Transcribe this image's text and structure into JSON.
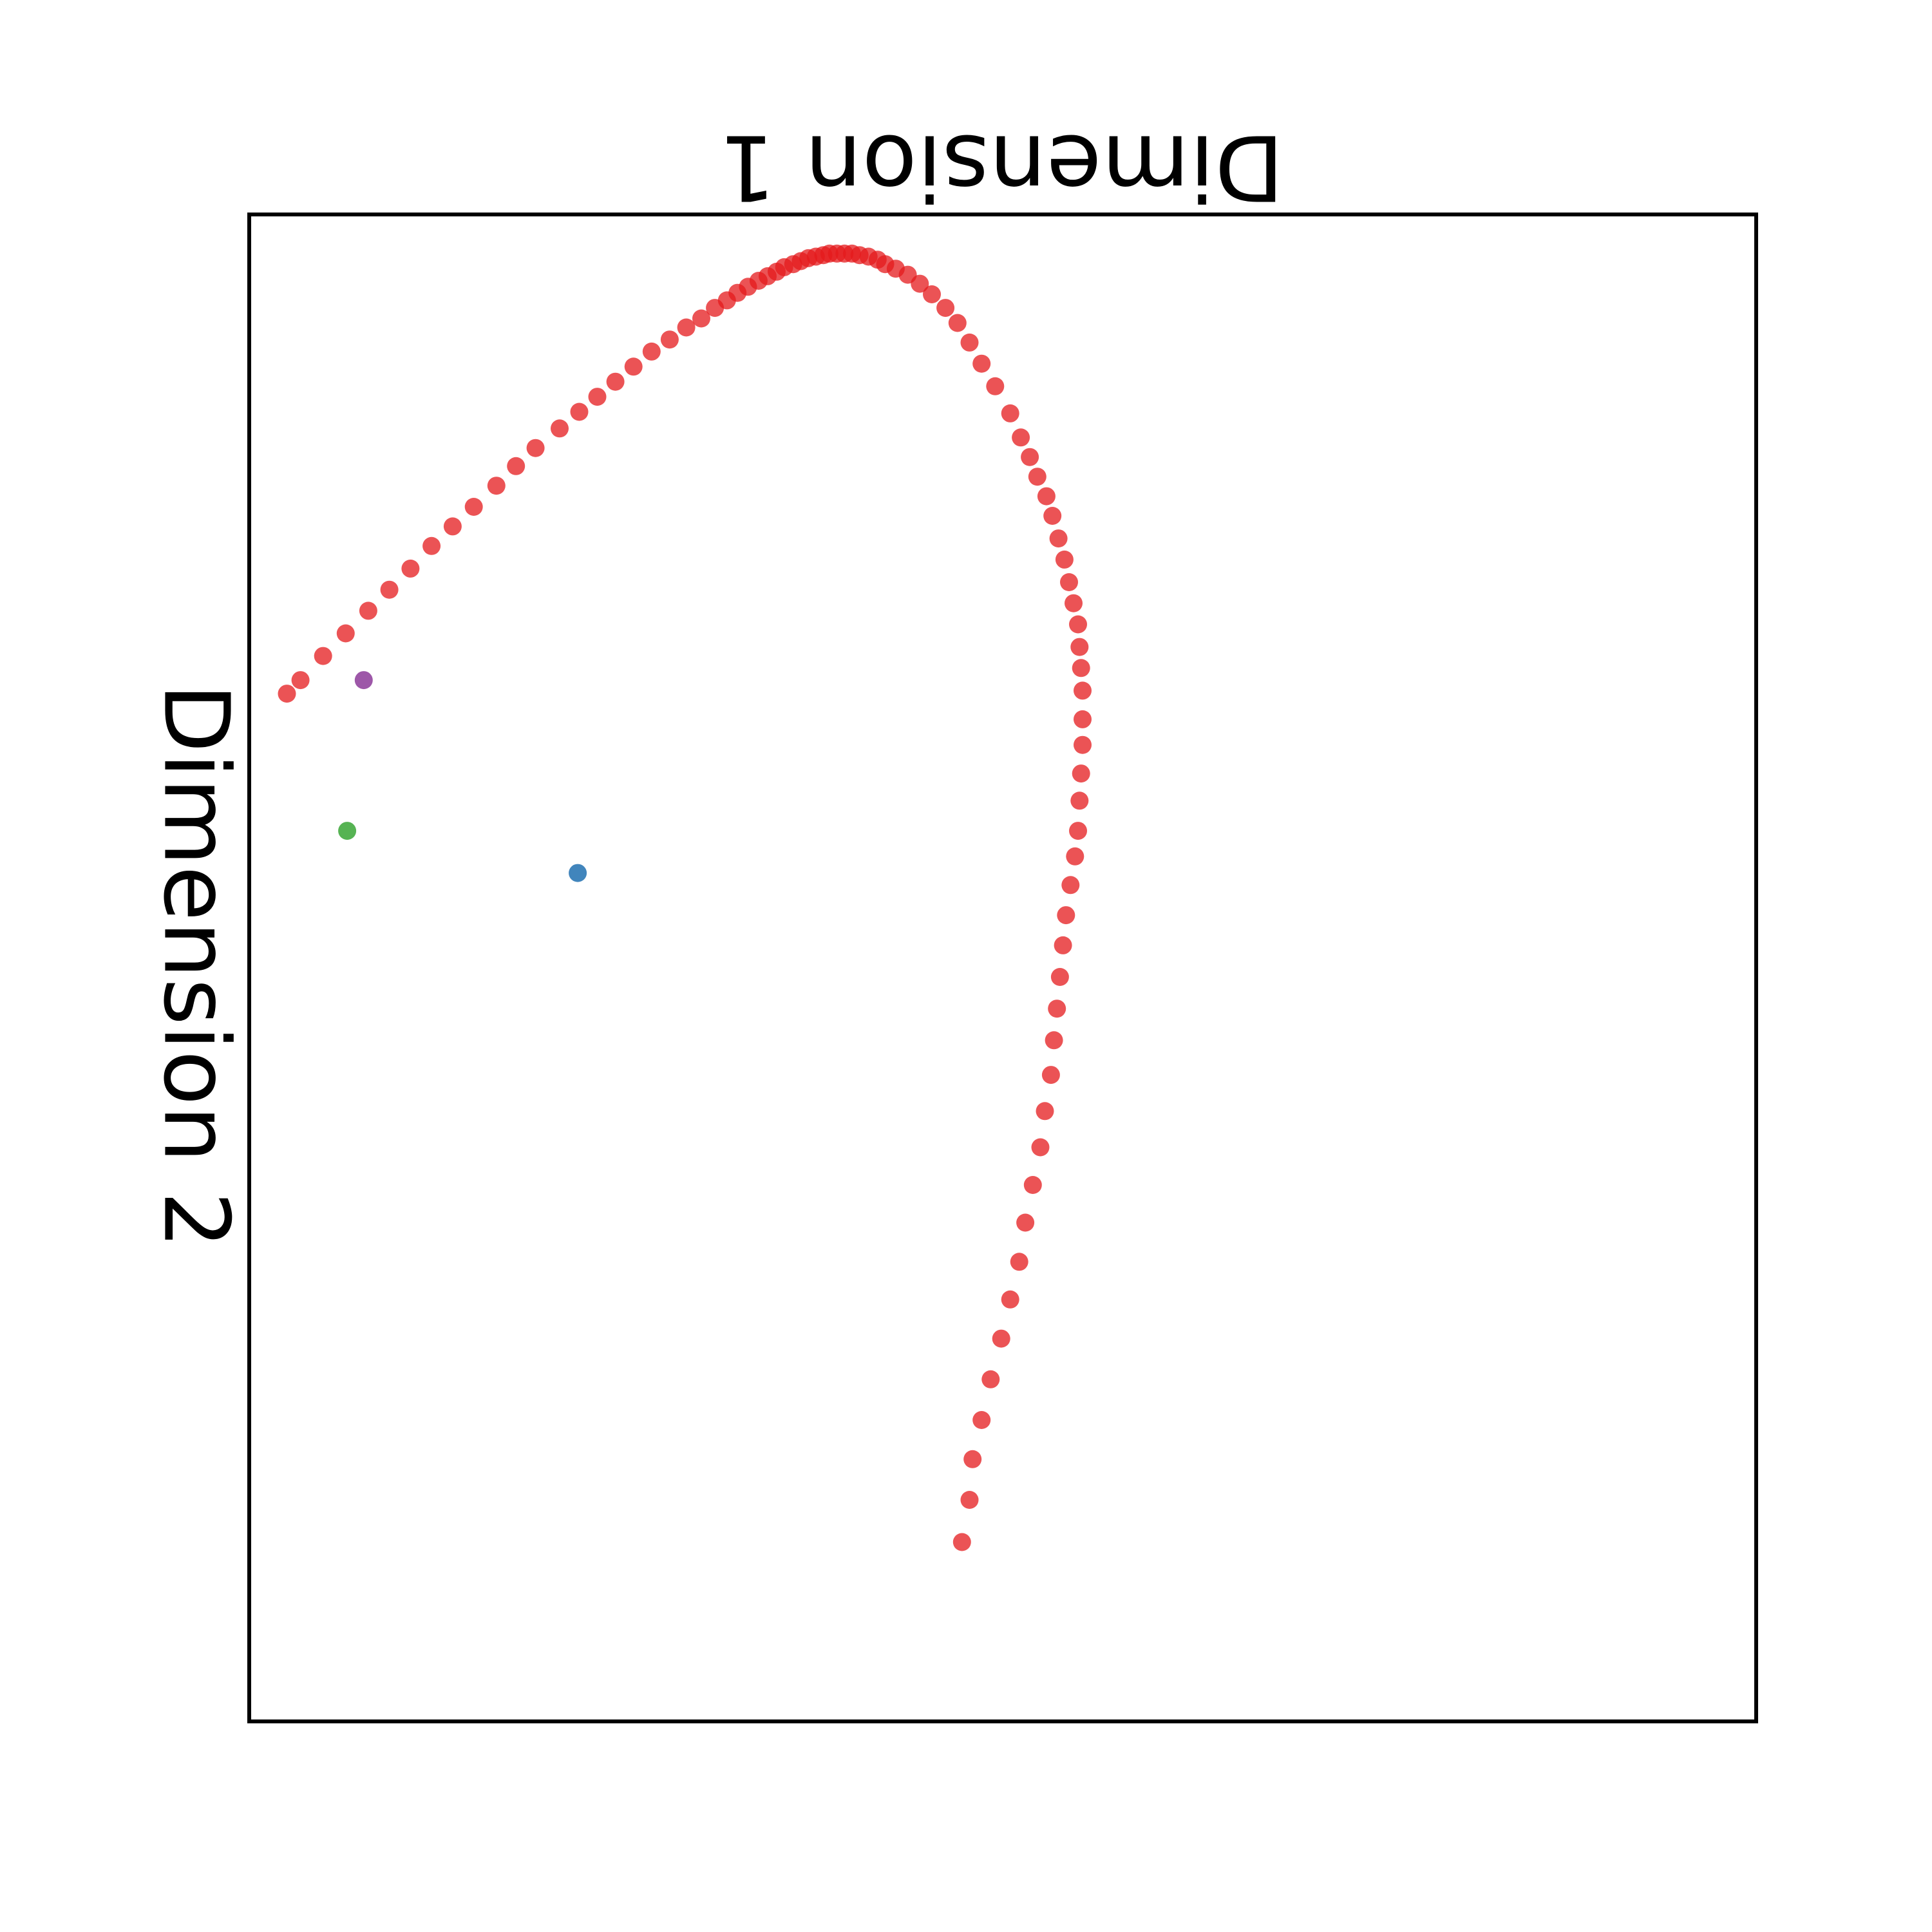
{
  "chart_data": {
    "type": "scatter",
    "title": "",
    "xlabel": "Dimension 1",
    "ylabel": "Dimension 2",
    "xticks": [],
    "yticks": [],
    "grid": false,
    "legend": "none",
    "note": "",
    "xlim": [
      0,
      100
    ],
    "ylim": [
      0,
      100
    ],
    "series": [
      {
        "color": "#e41a1c",
        "x": [
          2.5,
          3.4,
          4.9,
          6.4,
          7.9,
          9.3,
          10.7,
          12.1,
          13.5,
          14.9,
          16.4,
          17.7,
          19.0,
          20.6,
          21.9,
          23.1,
          24.3,
          25.5,
          26.7,
          27.9,
          29.0,
          30.0,
          30.9,
          31.7,
          32.4,
          33.1,
          33.8,
          34.4,
          35.0,
          35.5,
          36.1,
          36.6,
          37.1,
          37.6,
          38.1,
          38.5,
          39.0,
          39.5,
          40.0,
          40.5,
          41.1,
          41.7,
          42.2,
          42.9,
          43.7,
          44.5,
          45.3,
          46.2,
          47.0,
          47.8,
          48.6,
          49.5,
          50.5,
          51.2,
          51.8,
          52.3,
          52.9,
          53.3,
          53.7,
          54.1,
          54.4,
          54.7,
          55.0,
          55.1,
          55.2,
          55.3,
          55.3,
          55.3,
          55.2,
          55.1,
          55.0,
          54.8,
          54.5,
          54.2,
          54.0,
          53.8,
          53.6,
          53.4,
          53.2,
          52.8,
          52.5,
          52.0,
          51.5,
          51.1,
          50.5,
          49.9,
          49.2,
          48.6,
          48.0,
          47.8,
          47.3
        ],
        "y": [
          68.2,
          69.1,
          70.7,
          72.2,
          73.7,
          75.1,
          76.5,
          78.0,
          79.3,
          80.6,
          82.0,
          83.3,
          84.5,
          85.8,
          86.9,
          87.9,
          88.9,
          89.9,
          90.9,
          91.7,
          92.5,
          93.1,
          93.8,
          94.3,
          94.8,
          95.2,
          95.6,
          95.9,
          96.2,
          96.5,
          96.7,
          96.9,
          97.1,
          97.2,
          97.3,
          97.4,
          97.4,
          97.4,
          97.4,
          97.3,
          97.2,
          97.0,
          96.7,
          96.4,
          96.0,
          95.4,
          94.7,
          93.8,
          92.8,
          91.5,
          90.1,
          88.6,
          86.8,
          85.2,
          83.9,
          82.6,
          81.3,
          80.0,
          78.5,
          77.1,
          75.6,
          74.2,
          72.8,
          71.3,
          69.9,
          68.4,
          66.5,
          64.8,
          62.9,
          61.1,
          59.1,
          57.4,
          55.5,
          53.5,
          51.5,
          49.4,
          47.3,
          45.2,
          42.9,
          40.5,
          38.1,
          35.6,
          33.1,
          30.5,
          28.0,
          25.4,
          22.7,
          20.0,
          17.4,
          14.7,
          11.9
        ]
      },
      {
        "color": "#984ea3",
        "x": [
          7.6
        ],
        "y": [
          69.1
        ]
      },
      {
        "color": "#4daf4a",
        "x": [
          6.5
        ],
        "y": [
          59.1
        ]
      },
      {
        "color": "#377eb8",
        "x": [
          21.8
        ],
        "y": [
          56.3
        ]
      }
    ]
  }
}
